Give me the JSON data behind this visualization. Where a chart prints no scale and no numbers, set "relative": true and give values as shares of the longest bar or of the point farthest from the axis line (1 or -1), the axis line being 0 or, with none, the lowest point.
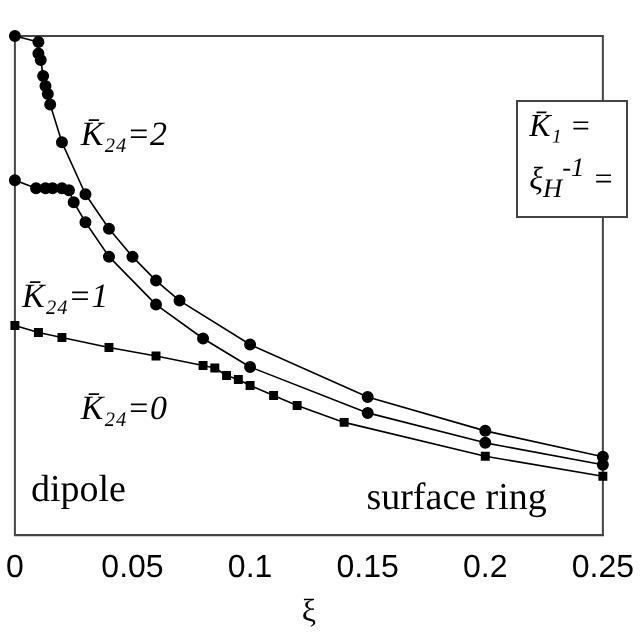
{
  "chart_data": {
    "type": "line",
    "xlabel": "ξ",
    "relative": true,
    "grid": false,
    "legend": false,
    "xlim": [
      0,
      0.25
    ],
    "xticks": [
      0,
      0.05,
      0.1,
      0.15,
      0.2,
      0.25
    ],
    "annotations": [
      "dipole",
      "surface ring",
      "K̄₁ =",
      "ξ$_{H}$$^{-1}$ ="
    ],
    "series": [
      {
        "name": "K̄₂₄=2",
        "color": "#000000",
        "marker": "circle",
        "x": [
          0,
          0.01,
          0.01,
          0.011,
          0.012,
          0.013,
          0.014,
          0.015,
          0.02,
          0.03,
          0.04,
          0.05,
          0.06,
          0.07,
          0.1,
          0.15,
          0.2,
          0.25
        ],
        "values": [
          1.0,
          0.988,
          0.965,
          0.952,
          0.92,
          0.9,
          0.884,
          0.863,
          0.787,
          0.683,
          0.614,
          0.558,
          0.51,
          0.47,
          0.382,
          0.277,
          0.209,
          0.157
        ]
      },
      {
        "name": "K̄₂₄=1",
        "color": "#000000",
        "marker": "circle",
        "x": [
          0,
          0.009,
          0.013,
          0.016,
          0.02,
          0.023,
          0.025,
          0.03,
          0.04,
          0.06,
          0.08,
          0.1,
          0.15,
          0.2,
          0.25
        ],
        "values": [
          0.711,
          0.695,
          0.695,
          0.695,
          0.695,
          0.691,
          0.667,
          0.627,
          0.558,
          0.462,
          0.394,
          0.337,
          0.245,
          0.185,
          0.141
        ]
      },
      {
        "name": "K̄₂₄=0",
        "color": "#000000",
        "marker": "square",
        "x": [
          0,
          0.01,
          0.02,
          0.04,
          0.06,
          0.08,
          0.085,
          0.09,
          0.095,
          0.1,
          0.11,
          0.12,
          0.14,
          0.2,
          0.25
        ],
        "values": [
          0.42,
          0.406,
          0.396,
          0.376,
          0.359,
          0.34,
          0.335,
          0.32,
          0.312,
          0.3,
          0.28,
          0.26,
          0.226,
          0.158,
          0.118
        ]
      }
    ]
  }
}
